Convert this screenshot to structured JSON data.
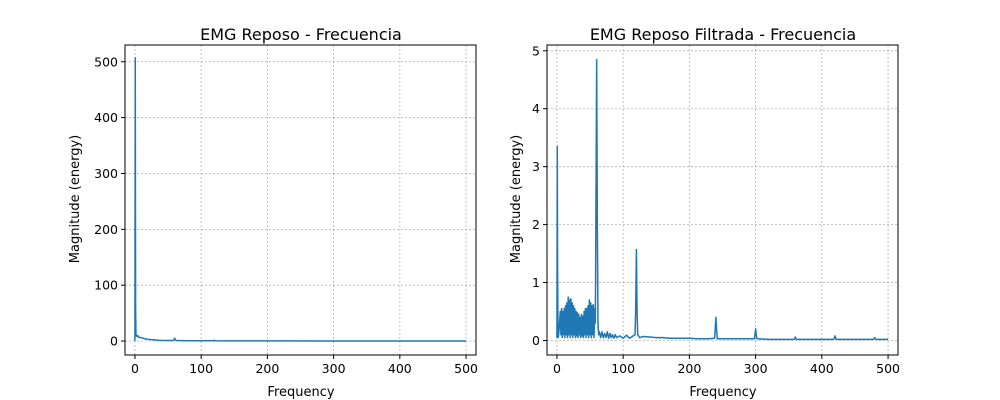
{
  "chart_data": [
    {
      "type": "line",
      "title": "EMG Reposo - Frecuencia",
      "xlabel": "Frequency",
      "ylabel": "Magnitude (energy)",
      "xlim": [
        -15,
        515
      ],
      "ylim": [
        -25,
        530
      ],
      "xticks": [
        0,
        100,
        200,
        300,
        400,
        500
      ],
      "yticks": [
        0,
        100,
        200,
        300,
        400,
        500
      ],
      "grid": true,
      "series": [
        {
          "x": [
            0,
            0.5,
            1,
            1.5,
            2,
            3,
            4,
            5,
            6,
            8,
            10,
            12,
            15,
            20,
            25,
            30,
            35,
            40,
            50,
            58,
            59,
            60,
            61,
            62,
            70,
            80,
            100,
            119,
            120,
            121,
            140,
            200,
            300,
            400,
            500
          ],
          "y": [
            0,
            507,
            60,
            12,
            9,
            10,
            8,
            9,
            7,
            6,
            6,
            5,
            4,
            3,
            2.5,
            2,
            1.5,
            1.2,
            1,
            1,
            3,
            5,
            3,
            1,
            0.8,
            0.6,
            0.5,
            0.5,
            1.5,
            0.5,
            0.3,
            0.2,
            0.1,
            0.1,
            0.1
          ]
        }
      ]
    },
    {
      "type": "line",
      "title": "EMG Reposo Filtrada - Frecuencia",
      "xlabel": "Frequency",
      "ylabel": "Magnitude (energy)",
      "xlim": [
        -15,
        515
      ],
      "ylim": [
        -0.25,
        5.1
      ],
      "xticks": [
        0,
        100,
        200,
        300,
        400,
        500
      ],
      "yticks": [
        0,
        1,
        2,
        3,
        4,
        5
      ],
      "grid": true,
      "series": [
        {
          "x": [
            0,
            0.5,
            1,
            1.5,
            2,
            3,
            4,
            5,
            6,
            7,
            8,
            9,
            10,
            11,
            12,
            13,
            14,
            15,
            16,
            17,
            18,
            19,
            20,
            21,
            22,
            23,
            24,
            25,
            26,
            27,
            28,
            29,
            30,
            31,
            32,
            33,
            34,
            35,
            36,
            37,
            38,
            39,
            40,
            41,
            42,
            43,
            44,
            45,
            46,
            47,
            48,
            49,
            50,
            51,
            52,
            53,
            54,
            55,
            56,
            57,
            58,
            59,
            60,
            61,
            62,
            63,
            64,
            66,
            68,
            70,
            72,
            74,
            76,
            78,
            80,
            82,
            84,
            86,
            88,
            90,
            95,
            100,
            105,
            110,
            115,
            118,
            119,
            120,
            121,
            122,
            125,
            130,
            140,
            150,
            160,
            170,
            180,
            190,
            200,
            210,
            220,
            230,
            238,
            239,
            240,
            241,
            242,
            250,
            260,
            280,
            298,
            299,
            300,
            301,
            302,
            320,
            340,
            358,
            359,
            360,
            361,
            362,
            380,
            400,
            418,
            419,
            420,
            421,
            422,
            440,
            460,
            478,
            479,
            480,
            481,
            482,
            500
          ],
          "y": [
            0.05,
            3.35,
            1.2,
            0.4,
            0.05,
            0.15,
            0.3,
            0.5,
            0.1,
            0.55,
            0.05,
            0.5,
            0.1,
            0.55,
            0.05,
            0.6,
            0.1,
            0.65,
            0.05,
            0.75,
            0.1,
            0.7,
            0.05,
            0.72,
            0.1,
            0.65,
            0.05,
            0.6,
            0.1,
            0.55,
            0.05,
            0.5,
            0.08,
            0.48,
            0.05,
            0.45,
            0.1,
            0.4,
            0.05,
            0.45,
            0.08,
            0.42,
            0.05,
            0.5,
            0.1,
            0.55,
            0.05,
            0.55,
            0.1,
            0.6,
            0.05,
            0.7,
            0.1,
            0.65,
            0.05,
            0.6,
            0.1,
            0.62,
            0.05,
            0.55,
            0.3,
            2.5,
            4.85,
            2.0,
            0.3,
            0.1,
            0.15,
            0.05,
            0.15,
            0.05,
            0.12,
            0.05,
            0.15,
            0.04,
            0.12,
            0.05,
            0.1,
            0.04,
            0.1,
            0.05,
            0.08,
            0.04,
            0.09,
            0.04,
            0.08,
            0.1,
            0.6,
            1.57,
            0.5,
            0.1,
            0.05,
            0.07,
            0.06,
            0.05,
            0.05,
            0.04,
            0.04,
            0.04,
            0.04,
            0.03,
            0.03,
            0.03,
            0.04,
            0.2,
            0.4,
            0.2,
            0.03,
            0.03,
            0.03,
            0.03,
            0.03,
            0.1,
            0.2,
            0.1,
            0.03,
            0.02,
            0.02,
            0.02,
            0.03,
            0.06,
            0.03,
            0.02,
            0.02,
            0.02,
            0.02,
            0.04,
            0.08,
            0.04,
            0.02,
            0.02,
            0.02,
            0.02,
            0.03,
            0.05,
            0.03,
            0.02,
            0.02
          ]
        }
      ]
    }
  ]
}
